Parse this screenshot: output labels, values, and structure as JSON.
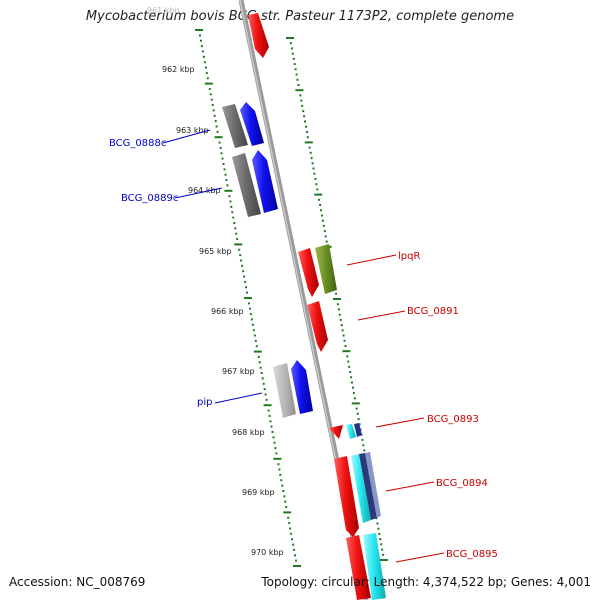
{
  "title": "Mycobacterium bovis BCG str. Pasteur 1173P2, complete genome",
  "accession": "Accession: NC_008769",
  "topology": "Topology: circular; Length: 4,374,522 bp; Genes: 4,001",
  "ticks": {
    "first_faded_label": "961 kbp",
    "labels": [
      "962 kbp",
      "963 kbp",
      "964 kbp",
      "965 kbp",
      "966 kbp",
      "967 kbp",
      "968 kbp",
      "969 kbp",
      "970 kbp"
    ]
  },
  "genes": [
    {
      "name": "BCG_0888c",
      "strand": "minus",
      "color": "#0000cc"
    },
    {
      "name": "BCG_0889c",
      "strand": "minus",
      "color": "#0000cc"
    },
    {
      "name": "lpqR",
      "strand": "plus",
      "color": "#cc0000"
    },
    {
      "name": "BCG_0891",
      "strand": "plus",
      "color": "#cc0000"
    },
    {
      "name": "pip",
      "strand": "minus",
      "color": "#0000cc"
    },
    {
      "name": "BCG_0893",
      "strand": "plus",
      "color": "#cc0000"
    },
    {
      "name": "BCG_0894",
      "strand": "plus",
      "color": "#cc0000"
    },
    {
      "name": "BCG_0895",
      "strand": "plus",
      "color": "#cc0000"
    }
  ],
  "colors": {
    "gene_red": "#ee1111",
    "gene_blue": "#1111ee",
    "gene_gray": "#707070",
    "gene_lightgray": "#b8b8b8",
    "gene_olive": "#6b8e23",
    "gene_cyan": "#22e6ee",
    "backbone": "#8a8a8a",
    "dots": "#1f7a1f"
  }
}
